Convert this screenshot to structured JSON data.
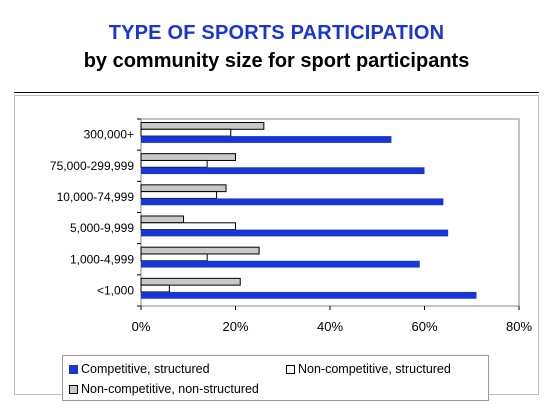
{
  "colors": {
    "title": "#1a35d6",
    "competitive": "#1a35d6",
    "noncomp_structured": "#ffffff",
    "noncomp_nonstructured": "#c8c8c8",
    "bar_border": "#000000",
    "plot_border": "#888888",
    "grid": "#000000"
  },
  "chart_data": {
    "type": "bar",
    "orientation": "horizontal",
    "title": "TYPE OF SPORTS PARTICIPATION",
    "subtitle": "by community size for sport participants",
    "categories": [
      "300,000+",
      "75,000-299,999",
      "10,000-74,999",
      "5,000-9,999",
      "1,000-4,999",
      "<1,000"
    ],
    "series": [
      {
        "name": "Non-competitive, non-structured",
        "values": [
          26,
          20,
          18,
          9,
          25,
          21
        ]
      },
      {
        "name": "Non-competitive, structured",
        "values": [
          19,
          14,
          16,
          20,
          14,
          6
        ]
      },
      {
        "name": "Competitive, structured",
        "values": [
          53,
          60,
          64,
          65,
          59,
          71
        ]
      }
    ],
    "xlim": [
      0,
      80
    ],
    "xticks": [
      "0%",
      "20%",
      "40%",
      "60%",
      "80%"
    ],
    "xtick_values": [
      0,
      20,
      40,
      60,
      80
    ],
    "grid": false,
    "legend_position": "bottom",
    "legend": {
      "competitive": "Competitive, structured",
      "noncomp_structured": "Non-competitive, structured",
      "noncomp_nonstructured": "Non-competitive, non-structured"
    }
  }
}
